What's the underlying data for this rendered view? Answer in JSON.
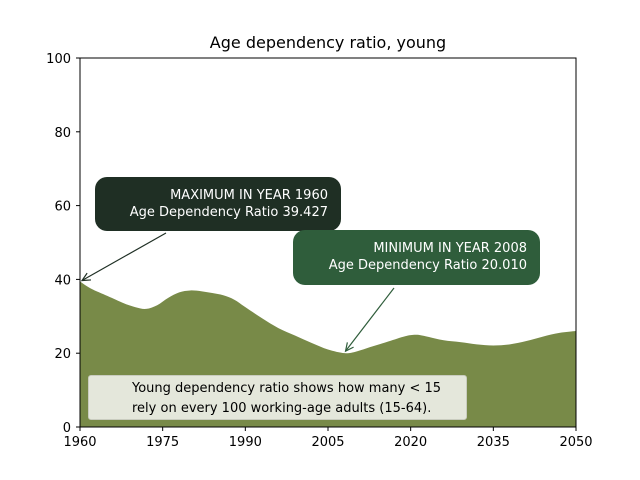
{
  "chart_data": {
    "type": "area",
    "title": "Age dependency ratio, young",
    "xlabel": "",
    "ylabel": "",
    "xlim": [
      1960,
      2050
    ],
    "ylim": [
      0,
      100
    ],
    "x_ticks": [
      1960,
      1975,
      1990,
      2005,
      2020,
      2035,
      2050
    ],
    "y_ticks": [
      0,
      20,
      40,
      60,
      80,
      100
    ],
    "grid": false,
    "fill_color": "#788a48",
    "x": [
      1960,
      1962,
      1965,
      1968,
      1970,
      1972,
      1974,
      1976,
      1978,
      1980,
      1982,
      1984,
      1986,
      1988,
      1990,
      1993,
      1996,
      1999,
      2002,
      2005,
      2008,
      2010,
      2013,
      2016,
      2019,
      2021,
      2023,
      2026,
      2029,
      2032,
      2035,
      2038,
      2041,
      2044,
      2047,
      2050
    ],
    "values": [
      39.427,
      37.5,
      35.5,
      33.5,
      32.5,
      32.0,
      33.0,
      35.0,
      36.5,
      37.0,
      36.8,
      36.3,
      35.7,
      34.5,
      32.5,
      29.5,
      26.8,
      24.8,
      22.8,
      21.0,
      20.01,
      20.4,
      21.8,
      23.2,
      24.6,
      25.0,
      24.5,
      23.5,
      23.0,
      22.4,
      22.1,
      22.4,
      23.3,
      24.5,
      25.5,
      26.0
    ],
    "annotations": [
      {
        "label": "MAXIMUM IN YEAR  1960",
        "text": "Age Dependency Ratio  39.427",
        "x": 1960,
        "y": 39.427
      },
      {
        "label": "MINIMUM IN YEAR  2008",
        "text": "Age Dependency Ratio  20.010",
        "x": 2008,
        "y": 20.01
      }
    ],
    "note": [
      "Young dependency ratio shows how many < 15",
      "rely on every 100 working-age adults (15-64)."
    ]
  },
  "colors": {
    "max_box": "#1f2f24",
    "min_box": "#2f5d3b",
    "max_arrow": "#1f2f24",
    "min_arrow": "#2f5d3b"
  }
}
